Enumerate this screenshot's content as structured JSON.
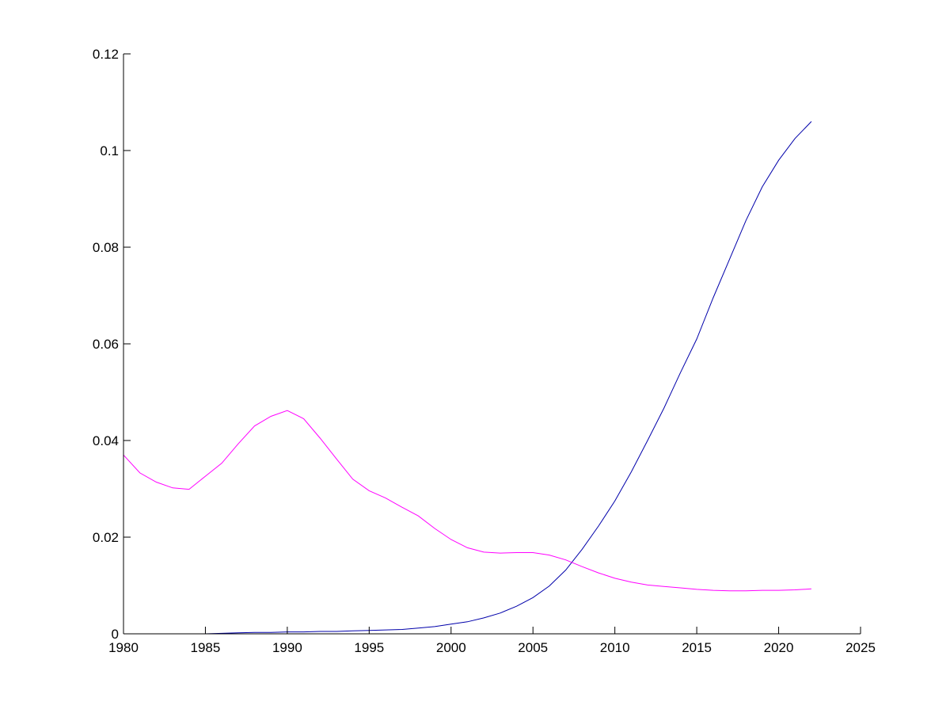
{
  "chart_data": {
    "type": "line",
    "title": "",
    "xlabel": "",
    "ylabel": "",
    "xlim": [
      1980,
      2025
    ],
    "ylim": [
      0,
      0.12
    ],
    "grid": false,
    "xticks": [
      "1980",
      "1985",
      "1990",
      "1995",
      "2000",
      "2005",
      "2010",
      "2015",
      "2020",
      "2025"
    ],
    "yticks": [
      "0",
      "0.02",
      "0.04",
      "0.06",
      "0.08",
      "0.1",
      "0.12"
    ],
    "x": [
      1980,
      1981,
      1982,
      1983,
      1984,
      1985,
      1986,
      1987,
      1988,
      1989,
      1990,
      1991,
      1992,
      1993,
      1994,
      1995,
      1996,
      1997,
      1998,
      1999,
      2000,
      2001,
      2002,
      2003,
      2004,
      2005,
      2006,
      2007,
      2008,
      2009,
      2010,
      2011,
      2012,
      2013,
      2014,
      2015,
      2016,
      2017,
      2018,
      2019,
      2020,
      2021,
      2022
    ],
    "series": [
      {
        "name": "blue series",
        "color": "#0000aa",
        "values": [
          0,
          0,
          0,
          0,
          0,
          0,
          0.0001,
          0.0002,
          0.0003,
          0.0003,
          0.0004,
          0.0004,
          0.0005,
          0.0005,
          0.0006,
          0.0007,
          0.0008,
          0.0009,
          0.0012,
          0.0015,
          0.002,
          0.0025,
          0.0033,
          0.0043,
          0.0057,
          0.0075,
          0.0099,
          0.0132,
          0.0175,
          0.0223,
          0.0275,
          0.0335,
          0.04,
          0.0467,
          0.054,
          0.061,
          0.0695,
          0.0775,
          0.0855,
          0.0925,
          0.098,
          0.1025,
          0.106
        ]
      },
      {
        "name": "magenta series",
        "color": "#ff00ff",
        "values": [
          0.037,
          0.0333,
          0.0314,
          0.0302,
          0.0299,
          0.0326,
          0.0353,
          0.0393,
          0.043,
          0.045,
          0.0462,
          0.0445,
          0.0405,
          0.0362,
          0.032,
          0.0296,
          0.0281,
          0.0262,
          0.0244,
          0.0218,
          0.0195,
          0.0178,
          0.0169,
          0.0167,
          0.0168,
          0.0168,
          0.0163,
          0.0153,
          0.0139,
          0.0126,
          0.0115,
          0.0107,
          0.0101,
          0.0098,
          0.0095,
          0.0092,
          0.009,
          0.0089,
          0.0089,
          0.009,
          0.009,
          0.0091,
          0.0093
        ]
      }
    ]
  }
}
